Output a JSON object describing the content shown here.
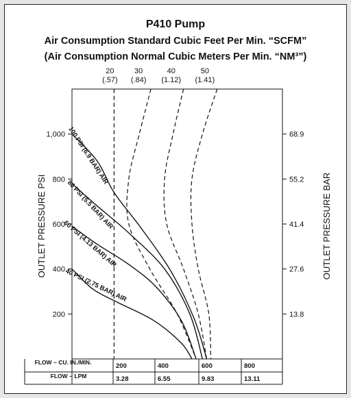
{
  "chart_data": {
    "type": "line",
    "title": "P410 Pump",
    "subtitle_1": "Air Consumption Standard Cubic Feet Per Min. “SCFM”",
    "subtitle_2": "(Air Consumption Normal Cubic Meters Per Min. “NM³”)",
    "ylabel_left": "OUTLET PRESSURE PSI",
    "ylabel_right": "OUTLET PRESSURE BAR",
    "xlabel": "",
    "ylim": [
      0,
      1200
    ],
    "xlim": [
      0,
      1000
    ],
    "yticks_left": [
      {
        "value": 200,
        "label": "200"
      },
      {
        "value": 400,
        "label": "400"
      },
      {
        "value": 600,
        "label": "600"
      },
      {
        "value": 800,
        "label": "800"
      },
      {
        "value": 1000,
        "label": "1,000"
      }
    ],
    "yticks_right": [
      {
        "value": 200,
        "label": "13.8"
      },
      {
        "value": 400,
        "label": "27.6"
      },
      {
        "value": 600,
        "label": "41.4"
      },
      {
        "value": 800,
        "label": "55.2"
      },
      {
        "value": 1000,
        "label": "68.9"
      }
    ],
    "flow_table": {
      "row1_label": "FLOW ~ CU. IN./MIN.",
      "row2_label": "FLOW ~ LPM",
      "columns": [
        {
          "x": 200,
          "cu_in": "200",
          "lpm": "3.28"
        },
        {
          "x": 400,
          "cu_in": "400",
          "lpm": "6.55"
        },
        {
          "x": 600,
          "cu_in": "600",
          "lpm": "9.83"
        },
        {
          "x": 800,
          "cu_in": "800",
          "lpm": "13.11"
        }
      ]
    },
    "air_series": [
      {
        "label_top": "20",
        "label_bottom": "(.57)",
        "points": [
          [
            200,
            1200
          ],
          [
            200,
            900
          ],
          [
            200,
            600
          ],
          [
            200,
            300
          ],
          [
            200,
            0
          ]
        ]
      },
      {
        "label_top": "30",
        "label_bottom": "(.84)",
        "points": [
          [
            375,
            1200
          ],
          [
            320,
            1000
          ],
          [
            270,
            800
          ],
          [
            270,
            600
          ],
          [
            370,
            400
          ],
          [
            500,
            200
          ],
          [
            590,
            0
          ]
        ]
      },
      {
        "label_top": "40",
        "label_bottom": "(1.12)",
        "points": [
          [
            530,
            1200
          ],
          [
            480,
            1000
          ],
          [
            440,
            800
          ],
          [
            450,
            600
          ],
          [
            530,
            400
          ],
          [
            600,
            200
          ],
          [
            640,
            0
          ]
        ]
      },
      {
        "label_top": "50",
        "label_bottom": "(1.41)",
        "points": [
          [
            690,
            1200
          ],
          [
            620,
            1000
          ],
          [
            570,
            800
          ],
          [
            570,
            600
          ],
          [
            600,
            400
          ],
          [
            650,
            200
          ],
          [
            660,
            0
          ]
        ]
      }
    ],
    "pressure_series": [
      {
        "name": "100 PSI (6.9 BAR) AIR",
        "points": [
          [
            0,
            1000
          ],
          [
            120,
            880
          ],
          [
            200,
            740
          ],
          [
            330,
            580
          ],
          [
            470,
            390
          ],
          [
            580,
            180
          ],
          [
            640,
            0
          ]
        ]
      },
      {
        "name": "80 PSI (5.5 BAR) AIR",
        "points": [
          [
            0,
            780
          ],
          [
            120,
            680
          ],
          [
            270,
            560
          ],
          [
            440,
            400
          ],
          [
            560,
            200
          ],
          [
            620,
            0
          ]
        ]
      },
      {
        "name": "60 PSI (4.13 BAR) AIR",
        "points": [
          [
            0,
            590
          ],
          [
            120,
            510
          ],
          [
            270,
            420
          ],
          [
            400,
            320
          ],
          [
            520,
            170
          ],
          [
            590,
            0
          ]
        ]
      },
      {
        "name": "40 PSI (2.75 BAR) AIR",
        "points": [
          [
            0,
            400
          ],
          [
            100,
            310
          ],
          [
            220,
            250
          ],
          [
            390,
            170
          ],
          [
            520,
            70
          ],
          [
            570,
            0
          ]
        ]
      }
    ],
    "pressure_label_positions": [
      {
        "x": 70,
        "y": 900,
        "angle": 57
      },
      {
        "x": 80,
        "y": 680,
        "angle": 47
      },
      {
        "x": 80,
        "y": 505,
        "angle": 41
      },
      {
        "x": 110,
        "y": 320,
        "angle": 26
      }
    ],
    "grid": false
  }
}
